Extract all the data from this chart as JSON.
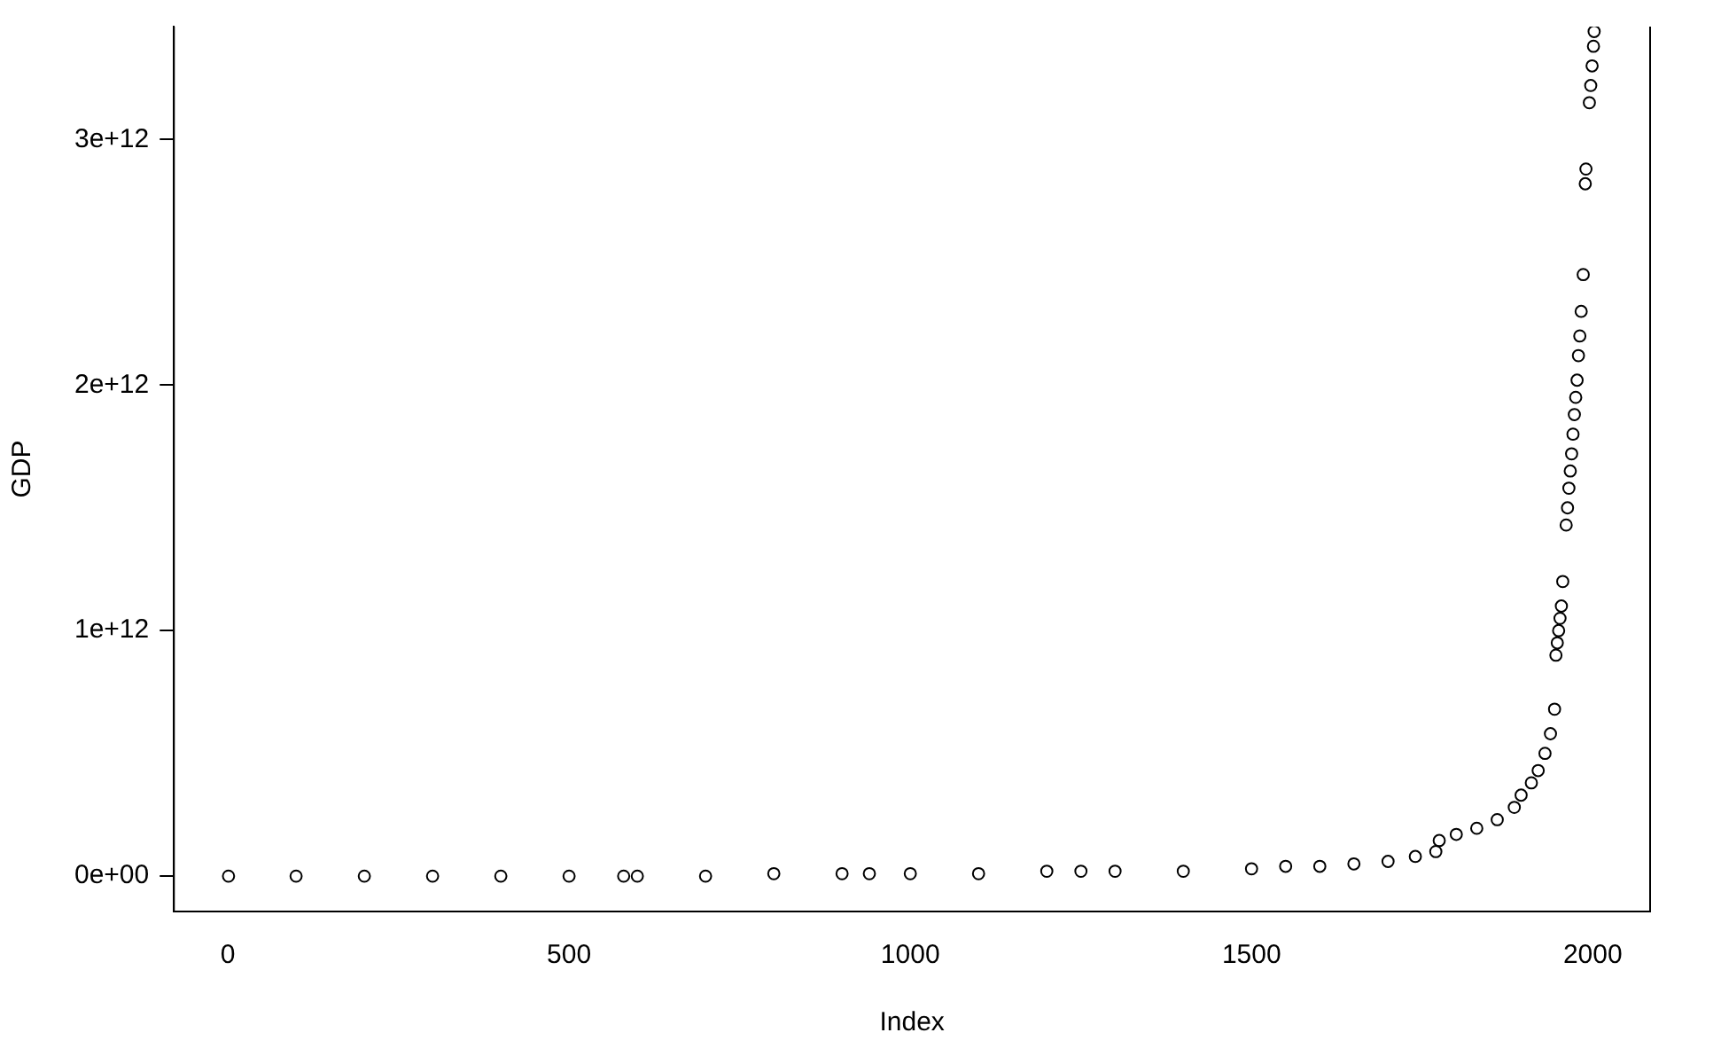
{
  "chart_data": {
    "type": "scatter",
    "xlabel": "Index",
    "ylabel": "GDP",
    "marker": "circle",
    "grid": false,
    "legend": false,
    "xlim": [
      -79,
      2084
    ],
    "xticks": [
      0,
      500,
      1000,
      1500,
      2000
    ],
    "ylim": [
      -144000000000,
      3460000000000
    ],
    "yticks": [
      {
        "value": 0,
        "label": "0e+00"
      },
      {
        "value": 1000000000000,
        "label": "1e+12"
      },
      {
        "value": 2000000000000,
        "label": "2e+12"
      },
      {
        "value": 3000000000000,
        "label": "3e+12"
      }
    ],
    "series": [
      {
        "color": "#000000",
        "x": [
          1,
          100,
          200,
          300,
          400,
          500,
          580,
          600,
          700,
          800,
          900,
          940,
          1000,
          1100,
          1200,
          1250,
          1300,
          1400,
          1500,
          1550,
          1600,
          1650,
          1700,
          1740,
          1770,
          1775,
          1800,
          1830,
          1860,
          1885,
          1895,
          1910,
          1920,
          1930,
          1938,
          1944,
          1946,
          1948,
          1950,
          1952,
          1954,
          1956,
          1961,
          1963,
          1965,
          1967,
          1969,
          1971,
          1973,
          1975,
          1977,
          1979,
          1981,
          1983,
          1986,
          1989,
          1990,
          1995,
          1997,
          1999,
          2001,
          2002
        ],
        "values": [
          0,
          0,
          0,
          0,
          0,
          0,
          0,
          0,
          0,
          10000000000,
          10000000000,
          10000000000,
          10000000000,
          10000000000,
          20000000000,
          20000000000,
          20000000000,
          20000000000,
          30000000000,
          40000000000,
          40000000000,
          50000000000,
          60000000000,
          80000000000,
          100000000000,
          145000000000,
          170000000000,
          195000000000,
          230000000000,
          280000000000,
          330000000000,
          380000000000,
          430000000000,
          500000000000,
          580000000000,
          680000000000,
          900000000000,
          950000000000,
          1000000000000,
          1050000000000,
          1100000000000,
          1200000000000,
          1430000000000,
          1500000000000,
          1580000000000,
          1650000000000,
          1720000000000,
          1800000000000,
          1880000000000,
          1950000000000,
          2020000000000,
          2120000000000,
          2200000000000,
          2300000000000,
          2450000000000,
          2820000000000,
          2880000000000,
          3150000000000,
          3220000000000,
          3300000000000,
          3380000000000,
          3440000000000
        ]
      }
    ]
  }
}
